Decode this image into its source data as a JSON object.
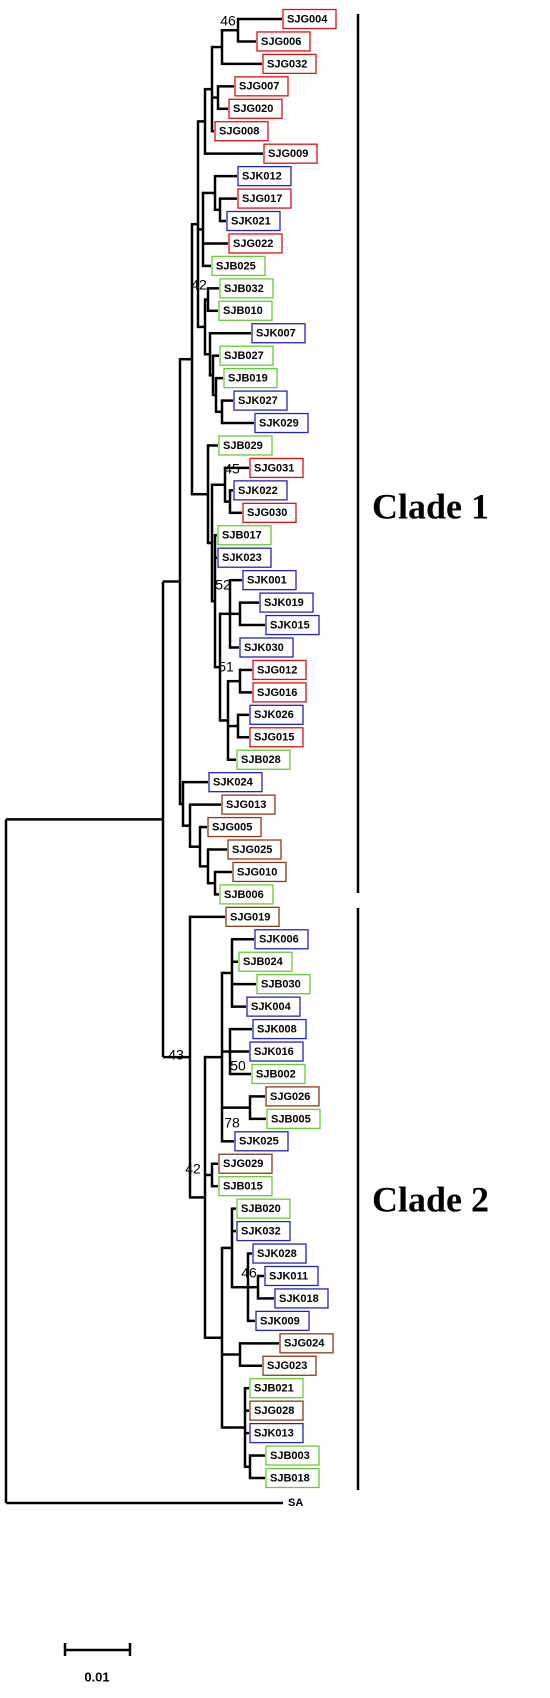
{
  "tree": {
    "leaves": [
      {
        "label": "SJG004",
        "color": "#e01010"
      },
      {
        "label": "SJG006",
        "color": "#e01010"
      },
      {
        "label": "SJG032",
        "color": "#e01010"
      },
      {
        "label": "SJG007",
        "color": "#e01010"
      },
      {
        "label": "SJG020",
        "color": "#e01010"
      },
      {
        "label": "SJG008",
        "color": "#e01010"
      },
      {
        "label": "SJG009",
        "color": "#e01010"
      },
      {
        "label": "SJK012",
        "color": "#2424b8"
      },
      {
        "label": "SJG017",
        "color": "#e01010"
      },
      {
        "label": "SJK021",
        "color": "#2424b8"
      },
      {
        "label": "SJG022",
        "color": "#e01010"
      },
      {
        "label": "SJB025",
        "color": "#66cc33"
      },
      {
        "label": "SJB032",
        "color": "#66cc33"
      },
      {
        "label": "SJB010",
        "color": "#66cc33"
      },
      {
        "label": "SJK007",
        "color": "#2424b8"
      },
      {
        "label": "SJB027",
        "color": "#66cc33"
      },
      {
        "label": "SJB019",
        "color": "#66cc33"
      },
      {
        "label": "SJK027",
        "color": "#2424b8"
      },
      {
        "label": "SJK029",
        "color": "#2424b8"
      },
      {
        "label": "SJB029",
        "color": "#66cc33"
      },
      {
        "label": "SJG031",
        "color": "#e01010"
      },
      {
        "label": "SJK022",
        "color": "#2424b8"
      },
      {
        "label": "SJG030",
        "color": "#e01010"
      },
      {
        "label": "SJB017",
        "color": "#66cc33"
      },
      {
        "label": "SJK023",
        "color": "#2424b8"
      },
      {
        "label": "SJK001",
        "color": "#2424b8"
      },
      {
        "label": "SJK019",
        "color": "#2424b8"
      },
      {
        "label": "SJK015",
        "color": "#2424b8"
      },
      {
        "label": "SJK030",
        "color": "#2424b8"
      },
      {
        "label": "SJG012",
        "color": "#e01010"
      },
      {
        "label": "SJG016",
        "color": "#e01010"
      },
      {
        "label": "SJK026",
        "color": "#2424b8"
      },
      {
        "label": "SJG015",
        "color": "#e01010"
      },
      {
        "label": "SJB028",
        "color": "#66cc33"
      },
      {
        "label": "SJK024",
        "color": "#2424b8"
      },
      {
        "label": "SJG013",
        "color": "#8b3a1a"
      },
      {
        "label": "SJG005",
        "color": "#8b3a1a"
      },
      {
        "label": "SJG025",
        "color": "#8b3a1a"
      },
      {
        "label": "SJG010",
        "color": "#8b3a1a"
      },
      {
        "label": "SJB006",
        "color": "#66cc33"
      },
      {
        "label": "SJG019",
        "color": "#8b3a1a"
      },
      {
        "label": "SJK006",
        "color": "#2424b8"
      },
      {
        "label": "SJB024",
        "color": "#66cc33"
      },
      {
        "label": "SJB030",
        "color": "#66cc33"
      },
      {
        "label": "SJK004",
        "color": "#2424b8"
      },
      {
        "label": "SJK008",
        "color": "#2424b8"
      },
      {
        "label": "SJK016",
        "color": "#2424b8"
      },
      {
        "label": "SJB002",
        "color": "#66cc33"
      },
      {
        "label": "SJG026",
        "color": "#8b3a1a"
      },
      {
        "label": "SJB005",
        "color": "#66cc33"
      },
      {
        "label": "SJK025",
        "color": "#2424b8"
      },
      {
        "label": "SJG029",
        "color": "#8b3a1a"
      },
      {
        "label": "SJB015",
        "color": "#66cc33"
      },
      {
        "label": "SJB020",
        "color": "#66cc33"
      },
      {
        "label": "SJK032",
        "color": "#2424b8"
      },
      {
        "label": "SJK028",
        "color": "#2424b8"
      },
      {
        "label": "SJK011",
        "color": "#2424b8"
      },
      {
        "label": "SJK018",
        "color": "#2424b8"
      },
      {
        "label": "SJK009",
        "color": "#2424b8"
      },
      {
        "label": "SJG024",
        "color": "#8b3a1a"
      },
      {
        "label": "SJG023",
        "color": "#8b3a1a"
      },
      {
        "label": "SJB021",
        "color": "#66cc33"
      },
      {
        "label": "SJG028",
        "color": "#8b3a1a"
      },
      {
        "label": "SJK013",
        "color": "#2424b8"
      },
      {
        "label": "SJB003",
        "color": "#66cc33"
      },
      {
        "label": "SJB018",
        "color": "#66cc33"
      }
    ],
    "outgroup": "SA",
    "bootstrap": [
      46,
      42,
      45,
      52,
      51,
      43,
      50,
      78,
      42,
      46
    ],
    "clades": [
      "Clade 1",
      "Clade 2"
    ],
    "scale": "0.01"
  }
}
